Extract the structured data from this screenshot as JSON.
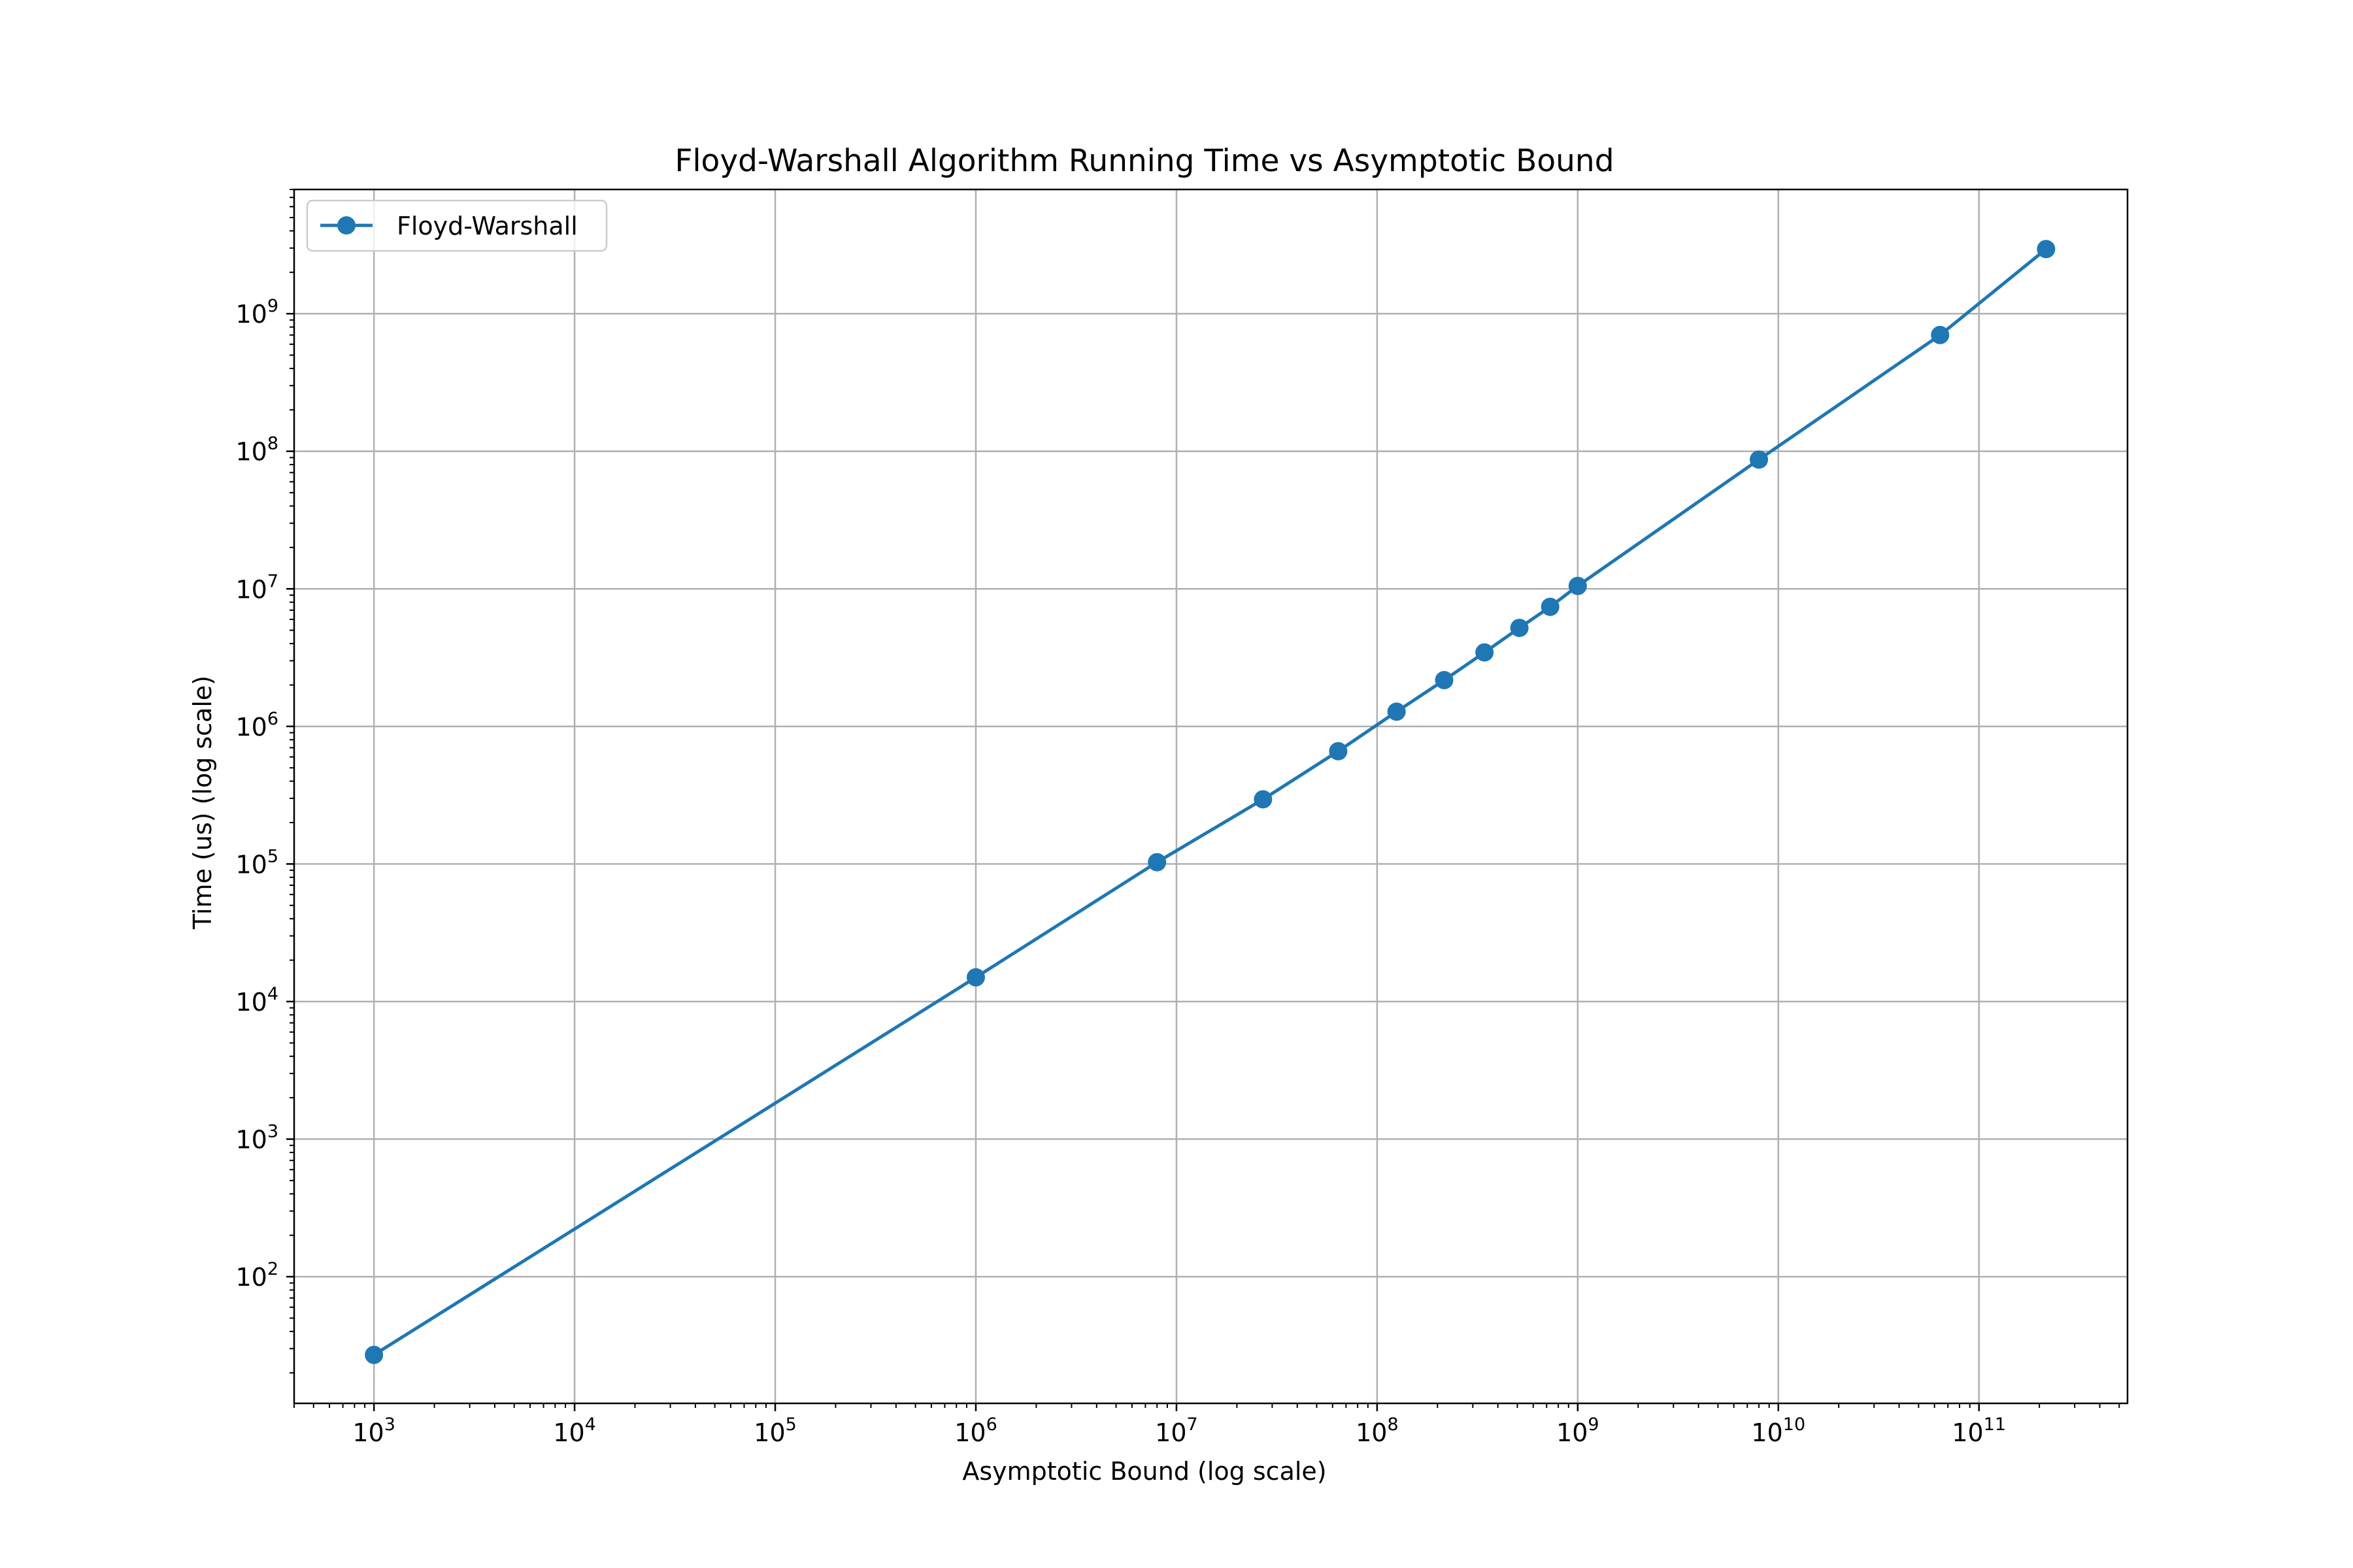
{
  "chart_data": {
    "type": "line",
    "title": "Floyd-Warshall Algorithm Running Time vs Asymptotic Bound",
    "xlabel": "Asymptotic Bound (log scale)",
    "ylabel": "Time (us) (log scale)",
    "xscale": "log",
    "yscale": "log",
    "xlim": [
      400,
      550000000000.0
    ],
    "ylim": [
      12,
      8000000000.0
    ],
    "x_ticks": [
      {
        "value": 1000.0,
        "base": "10",
        "exp": "3"
      },
      {
        "value": 10000.0,
        "base": "10",
        "exp": "4"
      },
      {
        "value": 100000.0,
        "base": "10",
        "exp": "5"
      },
      {
        "value": 1000000.0,
        "base": "10",
        "exp": "6"
      },
      {
        "value": 10000000.0,
        "base": "10",
        "exp": "7"
      },
      {
        "value": 100000000.0,
        "base": "10",
        "exp": "8"
      },
      {
        "value": 1000000000.0,
        "base": "10",
        "exp": "9"
      },
      {
        "value": 10000000000.0,
        "base": "10",
        "exp": "10"
      },
      {
        "value": 100000000000.0,
        "base": "10",
        "exp": "11"
      }
    ],
    "y_ticks": [
      {
        "value": 100.0,
        "base": "10",
        "exp": "2"
      },
      {
        "value": 1000.0,
        "base": "10",
        "exp": "3"
      },
      {
        "value": 10000.0,
        "base": "10",
        "exp": "4"
      },
      {
        "value": 100000.0,
        "base": "10",
        "exp": "5"
      },
      {
        "value": 1000000.0,
        "base": "10",
        "exp": "6"
      },
      {
        "value": 10000000.0,
        "base": "10",
        "exp": "7"
      },
      {
        "value": 100000000.0,
        "base": "10",
        "exp": "8"
      },
      {
        "value": 1000000000.0,
        "base": "10",
        "exp": "9"
      }
    ],
    "grid": true,
    "legend_position": "top-left",
    "series": [
      {
        "name": "Floyd-Warshall",
        "color": "#1f77b4",
        "marker": "circle",
        "x": [
          1000.0,
          1000000.0,
          8000000.0,
          27000000.0,
          64000000.0,
          125000000.0,
          216000000.0,
          343000000.0,
          512000000.0,
          729000000.0,
          1000000000.0,
          8000000000.0,
          64000000000.0,
          216000000000.0
        ],
        "y": [
          27,
          15000,
          103000,
          295000,
          660000,
          1280000,
          2170000,
          3450000,
          5200000,
          7400000,
          10500000,
          87000000,
          700000000,
          2950000000
        ]
      }
    ]
  }
}
